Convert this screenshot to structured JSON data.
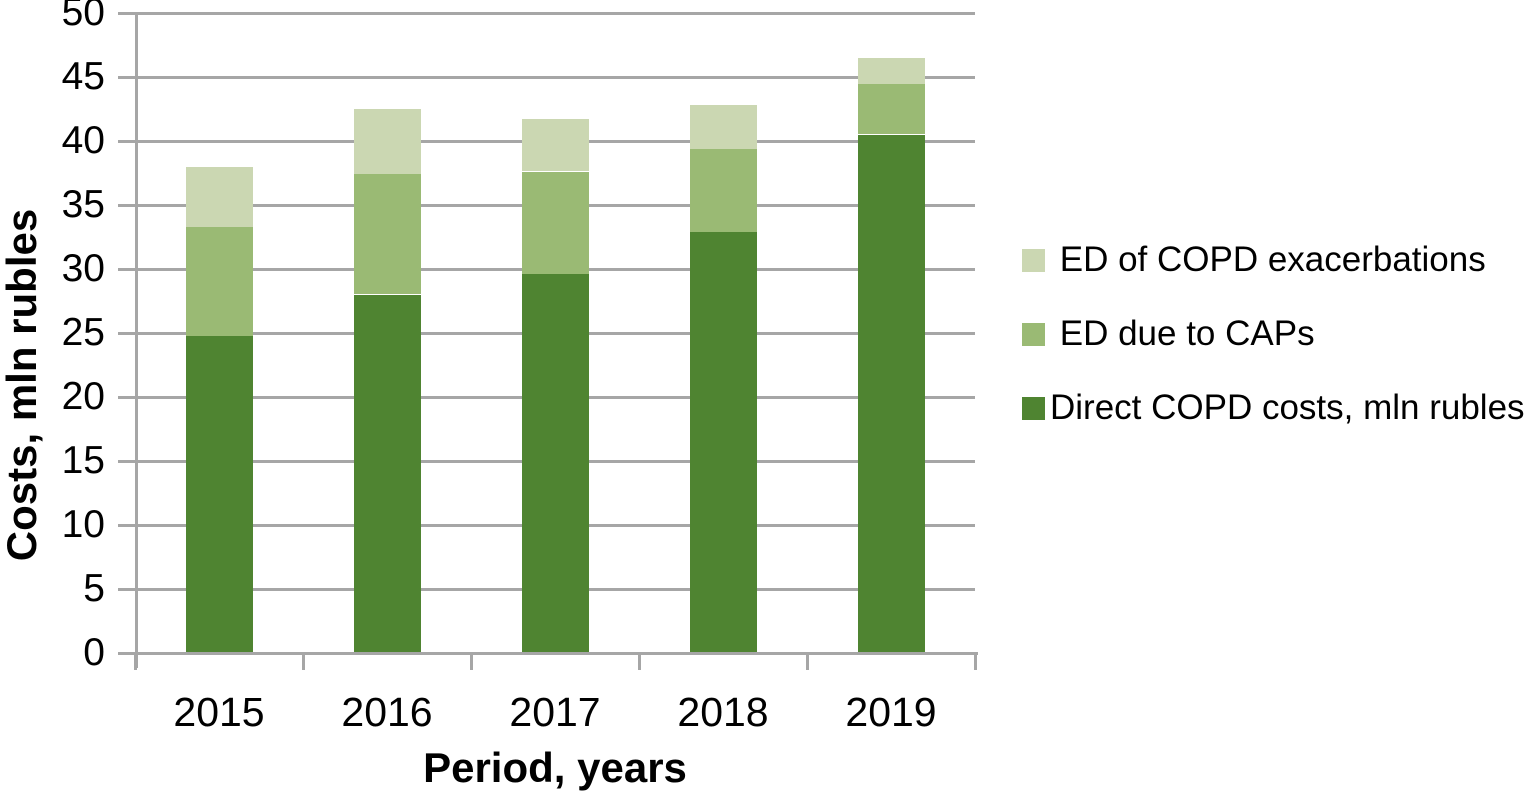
{
  "chart_data": {
    "type": "bar",
    "stacked": true,
    "xlabel": "Period, years",
    "ylabel": "Costs, mln rubles",
    "categories": [
      "2015",
      "2016",
      "2017",
      "2018",
      "2019"
    ],
    "series": [
      {
        "name": "Direct COPD costs, mln rubles",
        "color": "#4f8431",
        "values": [
          24.8,
          28.0,
          29.6,
          32.9,
          40.5
        ]
      },
      {
        "name": "ED due to CAPs",
        "color": "#9aba74",
        "values": [
          8.5,
          9.4,
          8.0,
          6.5,
          4.0
        ]
      },
      {
        "name": "ED of COPD exacerbations",
        "color": "#cbd7b2",
        "values": [
          4.7,
          5.1,
          4.1,
          3.4,
          2.0
        ]
      }
    ],
    "ylim": [
      0,
      50
    ],
    "ytick_step": 5,
    "y_tick_labels": [
      "0",
      "5",
      "10",
      "15",
      "20",
      "25",
      "30",
      "35",
      "40",
      "45",
      "50"
    ],
    "grid": true,
    "legend_position": "right",
    "legend": {
      "items": [
        {
          "label": " ED of COPD exacerbations",
          "color": "#cbd7b2"
        },
        {
          "label": " ED due to CAPs",
          "color": "#9aba74"
        },
        {
          "label": "Direct COPD costs, mln rubles",
          "color": "#4f8431"
        }
      ]
    },
    "colors": {
      "grid": "#a6a6a6",
      "axis": "#a6a6a6",
      "text": "#000000"
    }
  }
}
